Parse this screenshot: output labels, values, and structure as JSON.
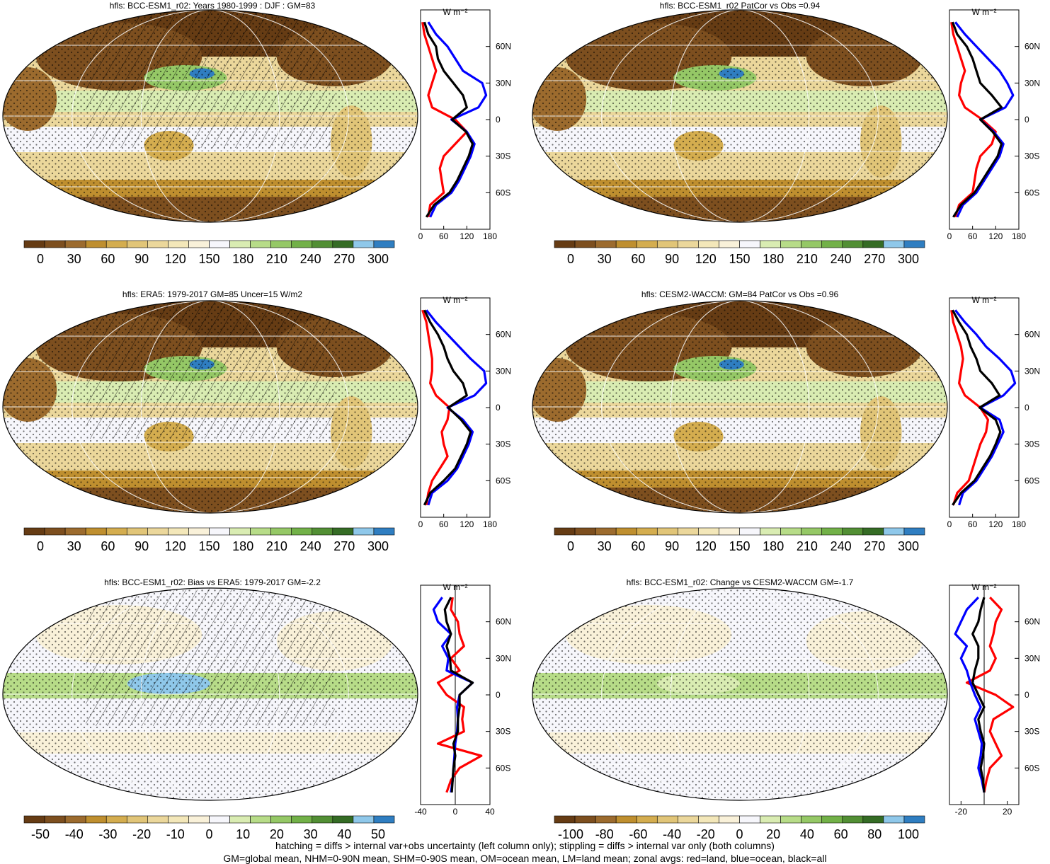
{
  "figure": {
    "footer_line1": "hatching = diffs > internal var+obs uncertainty (left column only); stippling = diffs > internal var only (both columns)",
    "footer_line2": "GM=global mean, NHM=0-90N mean, SHM=0-90S mean, OM=ocean mean, LM=land mean; zonal avgs: red=land, blue=ocean, black=all"
  },
  "colors": {
    "land": "#ff0000",
    "ocean": "#0000ff",
    "all": "#000000",
    "palette": [
      "#663c14",
      "#7d4f1f",
      "#9c6b2e",
      "#bf8f2f",
      "#d4ad4f",
      "#e1c578",
      "#ebd79b",
      "#f3e7b9",
      "#f9f1d9",
      "#f6f6fb",
      "#d9ecb2",
      "#b7dc88",
      "#95c866",
      "#72b148",
      "#528f34",
      "#356c25",
      "#8fc8ea",
      "#2f7ec1"
    ]
  },
  "panels": [
    {
      "title": "hfls: BCC-ESM1_r02: Years 1980-1999 : DJF : GM=83",
      "colorbar_ticks": [
        "0",
        "30",
        "60",
        "90",
        "120",
        "150",
        "180",
        "210",
        "240",
        "270",
        "300"
      ],
      "zonal_units": "W m⁻²",
      "chart_data": {
        "type": "line",
        "title": "hfls: BCC-ESM1_r02: Years 1980-1999 : DJF : GM=83",
        "xlim": [
          0,
          180
        ],
        "xticks": [
          "0",
          "60",
          "120",
          "180"
        ],
        "ylim": [
          -90,
          90
        ],
        "yticks": [
          "60N",
          "30N",
          "0",
          "30S",
          "60S"
        ],
        "y": [
          -80,
          -70,
          -60,
          -50,
          -40,
          -30,
          -20,
          -10,
          0,
          10,
          20,
          30,
          40,
          50,
          60,
          70,
          80
        ],
        "series": [
          {
            "name": "land",
            "values": [
              20,
              25,
              60,
              55,
              50,
              60,
              90,
              120,
              90,
              30,
              20,
              30,
              40,
              30,
              20,
              10,
              5
            ]
          },
          {
            "name": "ocean",
            "values": [
              25,
              40,
              80,
              100,
              115,
              130,
              140,
              120,
              80,
              150,
              170,
              160,
              110,
              90,
              70,
              40,
              20
            ]
          },
          {
            "name": "all",
            "values": [
              15,
              35,
              75,
              95,
              110,
              125,
              135,
              118,
              82,
              120,
              110,
              85,
              60,
              45,
              40,
              20,
              10
            ]
          }
        ]
      }
    },
    {
      "title": "hfls: BCC-ESM1_r02 PatCor vs Obs =0.94",
      "colorbar_ticks": [
        "0",
        "30",
        "60",
        "90",
        "120",
        "150",
        "180",
        "210",
        "240",
        "270",
        "300"
      ],
      "zonal_units": "W m⁻²",
      "chart_data": {
        "type": "line",
        "title": "hfls: BCC-ESM1_r02 PatCor vs Obs =0.94",
        "xlim": [
          0,
          180
        ],
        "xticks": [
          "0",
          "60",
          "120",
          "180"
        ],
        "ylim": [
          -90,
          90
        ],
        "yticks": [
          "60N",
          "30N",
          "0",
          "30S",
          "60S"
        ],
        "y": [
          -80,
          -70,
          -60,
          -50,
          -40,
          -30,
          -20,
          -10,
          0,
          10,
          20,
          30,
          40,
          50,
          60,
          70,
          80
        ],
        "series": [
          {
            "name": "land",
            "values": [
              15,
              25,
              60,
              65,
              70,
              80,
              110,
              120,
              85,
              40,
              25,
              30,
              40,
              30,
              20,
              10,
              5
            ]
          },
          {
            "name": "ocean",
            "values": [
              20,
              35,
              70,
              90,
              110,
              130,
              140,
              115,
              80,
              145,
              165,
              150,
              130,
              100,
              70,
              40,
              15
            ]
          },
          {
            "name": "all",
            "values": [
              10,
              30,
              65,
              85,
              105,
              125,
              135,
              112,
              80,
              135,
              110,
              80,
              70,
              60,
              45,
              20,
              8
            ]
          }
        ]
      }
    },
    {
      "title": "hfls: ERA5: 1979-2017 GM=85 Uncer=15 W/m2",
      "colorbar_ticks": [
        "0",
        "30",
        "60",
        "90",
        "120",
        "150",
        "180",
        "210",
        "240",
        "270",
        "300"
      ],
      "zonal_units": "W m⁻²",
      "chart_data": {
        "type": "line",
        "title": "hfls: ERA5: 1979-2017 GM=85 Uncer=15 W/m2",
        "xlim": [
          0,
          180
        ],
        "xticks": [
          "0",
          "60",
          "120",
          "180"
        ],
        "ylim": [
          -90,
          90
        ],
        "yticks": [
          "60N",
          "30N",
          "0",
          "30S",
          "60S"
        ],
        "y": [
          -80,
          -70,
          -60,
          -50,
          -40,
          -30,
          -20,
          -10,
          0,
          10,
          20,
          30,
          40,
          50,
          60,
          70,
          80
        ],
        "series": [
          {
            "name": "land",
            "values": [
              15,
              20,
              30,
              50,
              70,
              60,
              55,
              70,
              75,
              40,
              25,
              30,
              30,
              25,
              20,
              15,
              5
            ]
          },
          {
            "name": "ocean",
            "values": [
              20,
              30,
              70,
              95,
              110,
              125,
              135,
              110,
              70,
              140,
              170,
              165,
              130,
              100,
              70,
              40,
              15
            ]
          },
          {
            "name": "all",
            "values": [
              10,
              25,
              60,
              90,
              105,
              120,
              130,
              105,
              72,
              120,
              110,
              85,
              70,
              60,
              45,
              25,
              10
            ]
          }
        ]
      }
    },
    {
      "title": "hfls: CESM2-WACCM: GM=84 PatCor vs Obs =0.96",
      "colorbar_ticks": [
        "0",
        "30",
        "60",
        "90",
        "120",
        "150",
        "180",
        "210",
        "240",
        "270",
        "300"
      ],
      "zonal_units": "W m⁻²",
      "chart_data": {
        "type": "line",
        "title": "hfls: CESM2-WACCM: GM=84 PatCor vs Obs =0.96",
        "xlim": [
          0,
          180
        ],
        "xticks": [
          "0",
          "60",
          "120",
          "180"
        ],
        "ylim": [
          -90,
          90
        ],
        "yticks": [
          "60N",
          "30N",
          "0",
          "30S",
          "60S"
        ],
        "y": [
          -80,
          -70,
          -60,
          -50,
          -40,
          -30,
          -20,
          -10,
          0,
          10,
          20,
          30,
          40,
          50,
          60,
          70,
          80
        ],
        "series": [
          {
            "name": "land",
            "values": [
              10,
              20,
              50,
              60,
              70,
              80,
              95,
              100,
              80,
              40,
              25,
              30,
              35,
              30,
              20,
              10,
              5
            ]
          },
          {
            "name": "ocean",
            "values": [
              25,
              35,
              70,
              90,
              110,
              125,
              140,
              130,
              80,
              140,
              170,
              160,
              130,
              95,
              70,
              40,
              15
            ]
          },
          {
            "name": "all",
            "values": [
              8,
              30,
              65,
              85,
              105,
              120,
              132,
              120,
              78,
              130,
              110,
              80,
              70,
              55,
              45,
              25,
              8
            ]
          }
        ]
      }
    },
    {
      "title": "hfls: BCC-ESM1_r02: Bias vs ERA5: 1979-2017 GM=-2.2",
      "colorbar_ticks": [
        "-50",
        "-40",
        "-30",
        "-20",
        "-10",
        "0",
        "10",
        "20",
        "30",
        "40",
        "50"
      ],
      "zonal_units": "W m⁻²",
      "chart_data": {
        "type": "line",
        "title": "hfls: BCC-ESM1_r02: Bias vs ERA5: 1979-2017 GM=-2.2",
        "xlim": [
          -40,
          40
        ],
        "xticks": [
          "-40",
          "0",
          "40"
        ],
        "ylim": [
          -90,
          90
        ],
        "yticks": [
          "60N",
          "30N",
          "0",
          "30S",
          "60S"
        ],
        "y": [
          -80,
          -70,
          -60,
          -50,
          -40,
          -30,
          -20,
          -10,
          0,
          10,
          20,
          30,
          40,
          50,
          60,
          70,
          80
        ],
        "series": [
          {
            "name": "land",
            "values": [
              -10,
              -5,
              5,
              30,
              -20,
              10,
              8,
              10,
              -10,
              -20,
              5,
              -5,
              10,
              5,
              3,
              -5,
              -3
            ]
          },
          {
            "name": "ocean",
            "values": [
              -5,
              -3,
              -2,
              -1,
              0,
              2,
              3,
              2,
              5,
              20,
              -10,
              -8,
              -15,
              -5,
              -20,
              -25,
              -15
            ]
          },
          {
            "name": "all",
            "values": [
              -4,
              -3,
              -2,
              0,
              -2,
              3,
              3,
              5,
              5,
              20,
              -5,
              -6,
              -10,
              -5,
              -10,
              -12,
              -5
            ]
          }
        ]
      }
    },
    {
      "title": "hfls: BCC-ESM1_r02: Change vs CESM2-WACCM GM=-1.7",
      "colorbar_ticks": [
        "-100",
        "-80",
        "-60",
        "-40",
        "-20",
        "0",
        "20",
        "40",
        "60",
        "80",
        "100"
      ],
      "zonal_units": "W m⁻²",
      "chart_data": {
        "type": "line",
        "title": "hfls: BCC-ESM1_r02: Change vs CESM2-WACCM GM=-1.7",
        "xlim": [
          -30,
          30
        ],
        "xticks": [
          "-20",
          "20"
        ],
        "ylim": [
          -90,
          90
        ],
        "yticks": [
          "60N",
          "30N",
          "0",
          "30S",
          "60S"
        ],
        "y": [
          -80,
          -70,
          -60,
          -50,
          -40,
          -30,
          -20,
          -10,
          0,
          10,
          20,
          30,
          40,
          50,
          60,
          70,
          80
        ],
        "series": [
          {
            "name": "land",
            "values": [
              0,
              2,
              5,
              15,
              10,
              5,
              8,
              25,
              10,
              -15,
              5,
              10,
              5,
              8,
              10,
              15,
              5
            ]
          },
          {
            "name": "ocean",
            "values": [
              0,
              -2,
              -5,
              -3,
              -2,
              -5,
              -8,
              -3,
              -8,
              -12,
              -15,
              -20,
              -15,
              -25,
              -20,
              -15,
              -5
            ]
          },
          {
            "name": "all",
            "values": [
              0,
              -1,
              -3,
              -1,
              0,
              -3,
              -5,
              0,
              -5,
              -10,
              -8,
              -5,
              -5,
              -10,
              -5,
              -3,
              0
            ]
          }
        ]
      }
    }
  ]
}
